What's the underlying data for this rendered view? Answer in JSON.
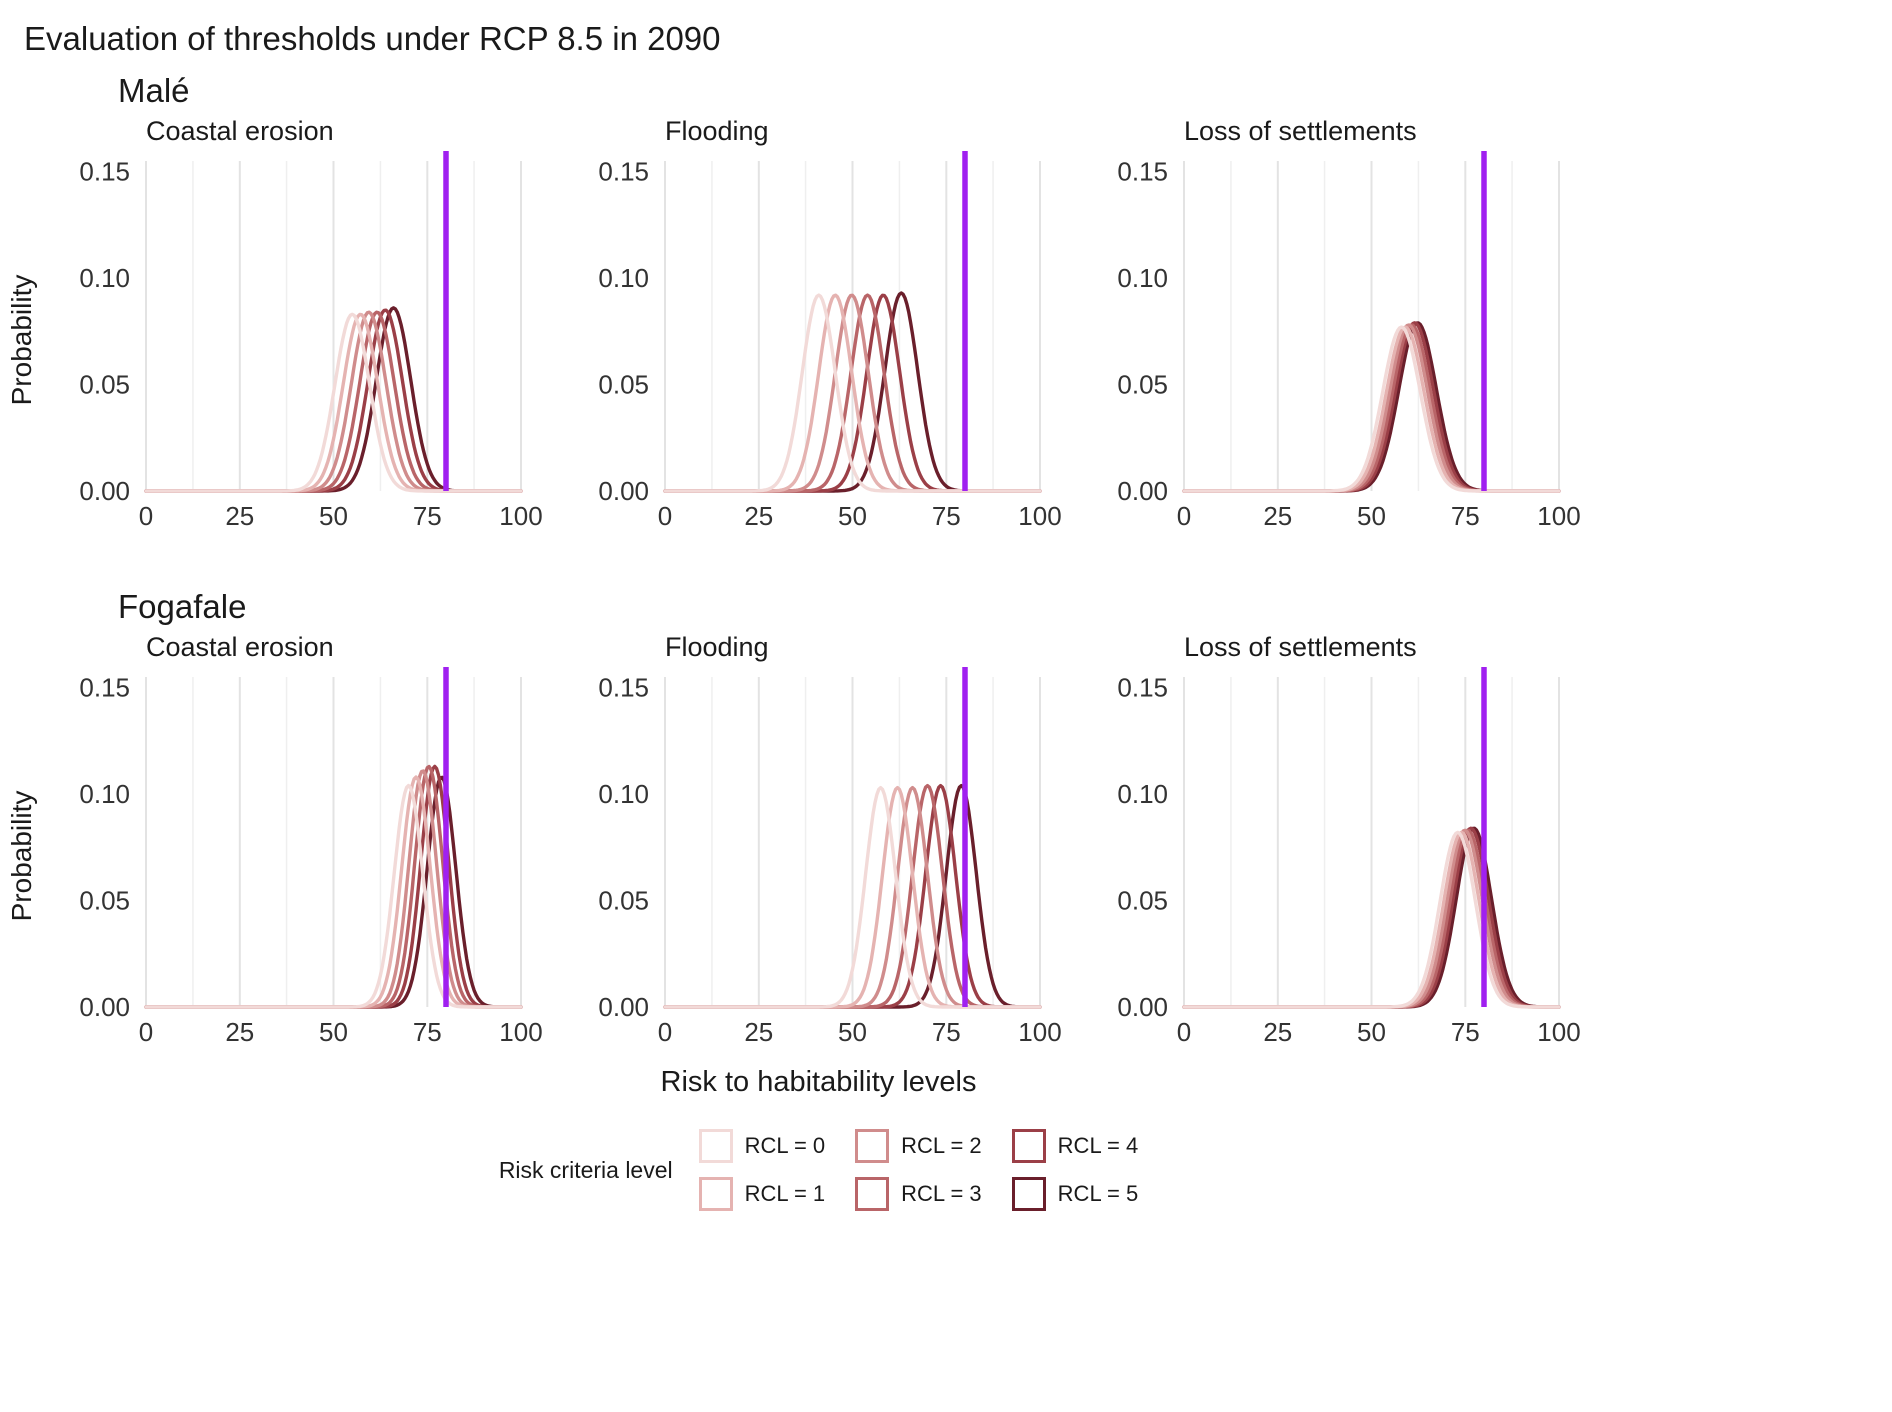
{
  "page": {
    "title": "Evaluation of thresholds under RCP 8.5 in 2090"
  },
  "axes": {
    "x_label": "Risk to habitability levels",
    "y_label": "Probability",
    "x_ticks": [
      0,
      25,
      50,
      75,
      100
    ],
    "minor_x": [
      12.5,
      37.5,
      62.5,
      87.5
    ],
    "y_ticks": [
      0,
      0.05,
      0.1,
      0.15
    ],
    "y_tick_labels": [
      "0.00",
      "0.05",
      "0.10",
      "0.15"
    ],
    "xlim": [
      0,
      100
    ],
    "ylim": [
      0,
      0.155
    ],
    "grid": "vertical-only"
  },
  "threshold": {
    "x": 80,
    "color": "#A020F0"
  },
  "legend": {
    "title": "Risk criteria level",
    "items": [
      {
        "label": "RCL = 0",
        "color": "#F2DAD8"
      },
      {
        "label": "RCL = 1",
        "color": "#E5B3B1"
      },
      {
        "label": "RCL = 2",
        "color": "#D08C8C"
      },
      {
        "label": "RCL = 3",
        "color": "#B96568"
      },
      {
        "label": "RCL = 4",
        "color": "#9B3F47"
      },
      {
        "label": "RCL = 5",
        "color": "#6A1F2B"
      }
    ]
  },
  "chart_data": {
    "type": "line",
    "subtype": "gaussian-density-curves",
    "x_range": [
      0,
      100
    ],
    "threshold_x": 80,
    "rows": [
      {
        "name": "Malé",
        "panels": [
          {
            "title": "Coastal erosion",
            "series": [
              {
                "name": "RCL = 0",
                "mean": 55.0,
                "sd": 4.6,
                "peak": 0.083
              },
              {
                "name": "RCL = 1",
                "mean": 57.2,
                "sd": 4.6,
                "peak": 0.083
              },
              {
                "name": "RCL = 2",
                "mean": 59.4,
                "sd": 4.6,
                "peak": 0.084
              },
              {
                "name": "RCL = 3",
                "mean": 61.6,
                "sd": 4.6,
                "peak": 0.084
              },
              {
                "name": "RCL = 4",
                "mean": 63.8,
                "sd": 4.6,
                "peak": 0.085
              },
              {
                "name": "RCL = 5",
                "mean": 66.0,
                "sd": 4.6,
                "peak": 0.086
              }
            ]
          },
          {
            "title": "Flooding",
            "series": [
              {
                "name": "RCL = 0",
                "mean": 41.0,
                "sd": 4.4,
                "peak": 0.092
              },
              {
                "name": "RCL = 1",
                "mean": 45.4,
                "sd": 4.4,
                "peak": 0.092
              },
              {
                "name": "RCL = 2",
                "mean": 49.8,
                "sd": 4.4,
                "peak": 0.092
              },
              {
                "name": "RCL = 3",
                "mean": 54.0,
                "sd": 4.4,
                "peak": 0.092
              },
              {
                "name": "RCL = 4",
                "mean": 58.2,
                "sd": 4.4,
                "peak": 0.092
              },
              {
                "name": "RCL = 5",
                "mean": 63.0,
                "sd": 4.4,
                "peak": 0.093
              }
            ]
          },
          {
            "title": "Loss of settlements",
            "series": [
              {
                "name": "RCL = 0",
                "mean": 58.0,
                "sd": 5.0,
                "peak": 0.077
              },
              {
                "name": "RCL = 1",
                "mean": 59.0,
                "sd": 5.0,
                "peak": 0.077
              },
              {
                "name": "RCL = 2",
                "mean": 59.9,
                "sd": 5.0,
                "peak": 0.078
              },
              {
                "name": "RCL = 3",
                "mean": 60.7,
                "sd": 5.0,
                "peak": 0.078
              },
              {
                "name": "RCL = 4",
                "mean": 61.5,
                "sd": 5.0,
                "peak": 0.079
              },
              {
                "name": "RCL = 5",
                "mean": 62.3,
                "sd": 5.0,
                "peak": 0.079
              }
            ]
          }
        ]
      },
      {
        "name": "Fogafale",
        "panels": [
          {
            "title": "Coastal erosion",
            "series": [
              {
                "name": "RCL = 0",
                "mean": 70.0,
                "sd": 3.8,
                "peak": 0.104
              },
              {
                "name": "RCL = 1",
                "mean": 72.0,
                "sd": 3.8,
                "peak": 0.108
              },
              {
                "name": "RCL = 2",
                "mean": 73.8,
                "sd": 3.7,
                "peak": 0.111
              },
              {
                "name": "RCL = 3",
                "mean": 75.4,
                "sd": 3.7,
                "peak": 0.113
              },
              {
                "name": "RCL = 4",
                "mean": 77.0,
                "sd": 3.7,
                "peak": 0.113
              },
              {
                "name": "RCL = 5",
                "mean": 78.8,
                "sd": 3.8,
                "peak": 0.108
              }
            ]
          },
          {
            "title": "Flooding",
            "series": [
              {
                "name": "RCL = 0",
                "mean": 57.5,
                "sd": 4.0,
                "peak": 0.103
              },
              {
                "name": "RCL = 1",
                "mean": 62.0,
                "sd": 4.0,
                "peak": 0.103
              },
              {
                "name": "RCL = 2",
                "mean": 66.0,
                "sd": 4.0,
                "peak": 0.103
              },
              {
                "name": "RCL = 3",
                "mean": 70.0,
                "sd": 4.0,
                "peak": 0.104
              },
              {
                "name": "RCL = 4",
                "mean": 73.5,
                "sd": 4.0,
                "peak": 0.104
              },
              {
                "name": "RCL = 5",
                "mean": 79.0,
                "sd": 4.0,
                "peak": 0.104
              }
            ]
          },
          {
            "title": "Loss of settlements",
            "series": [
              {
                "name": "RCL = 0",
                "mean": 73.0,
                "sd": 4.7,
                "peak": 0.082
              },
              {
                "name": "RCL = 1",
                "mean": 74.0,
                "sd": 4.7,
                "peak": 0.082
              },
              {
                "name": "RCL = 2",
                "mean": 74.9,
                "sd": 4.7,
                "peak": 0.083
              },
              {
                "name": "RCL = 3",
                "mean": 75.7,
                "sd": 4.7,
                "peak": 0.083
              },
              {
                "name": "RCL = 4",
                "mean": 76.5,
                "sd": 4.7,
                "peak": 0.084
              },
              {
                "name": "RCL = 5",
                "mean": 77.3,
                "sd": 4.7,
                "peak": 0.084
              }
            ]
          }
        ]
      }
    ]
  }
}
